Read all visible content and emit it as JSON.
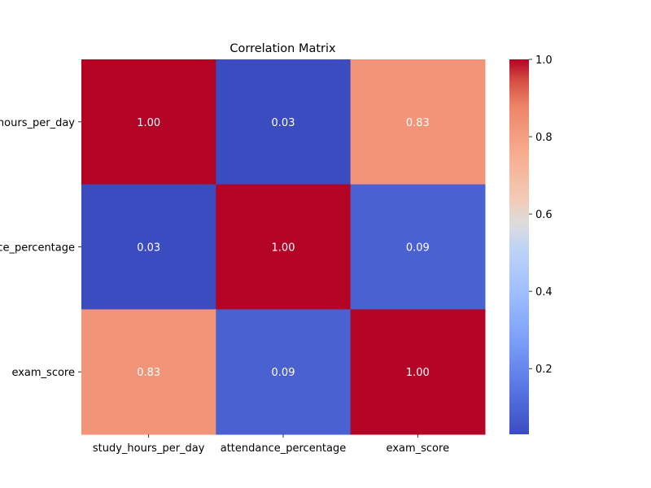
{
  "chart_data": {
    "type": "heatmap",
    "title": "Correlation Matrix",
    "row_labels": [
      "study_hours_per_day",
      "attendance_percentage",
      "exam_score"
    ],
    "col_labels": [
      "study_hours_per_day",
      "attendance_percentage",
      "exam_score"
    ],
    "values": [
      [
        1.0,
        0.03,
        0.83
      ],
      [
        0.03,
        1.0,
        0.09
      ],
      [
        0.83,
        0.09,
        1.0
      ]
    ],
    "annotations": [
      [
        "1.00",
        "0.03",
        "0.83"
      ],
      [
        "0.03",
        "1.00",
        "0.09"
      ],
      [
        "0.83",
        "0.09",
        "1.00"
      ]
    ],
    "colormap": "coolwarm",
    "color_range": [
      0.03,
      1.0
    ],
    "colorbar_ticks": [
      "0.2",
      "0.4",
      "0.6",
      "0.8",
      "1.0"
    ],
    "colorbar_tick_values": [
      0.2,
      0.4,
      0.6,
      0.8,
      1.0
    ]
  }
}
